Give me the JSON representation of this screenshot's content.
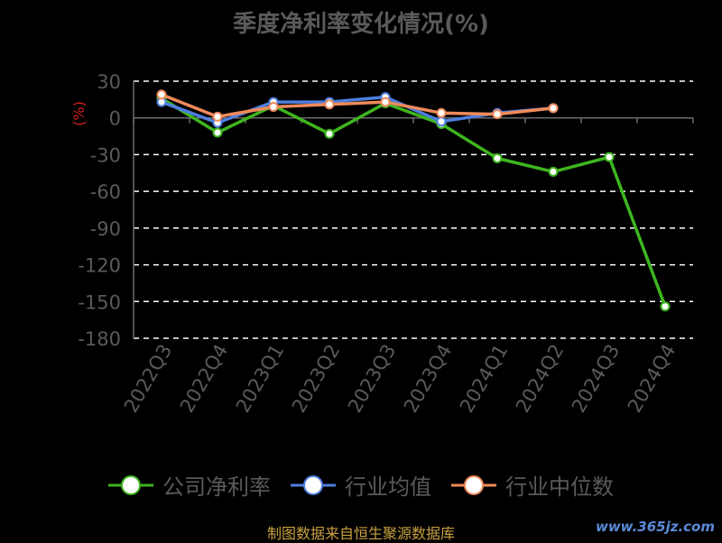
{
  "title": "季度净利率变化情况(%)",
  "source": "制图数据来自恒生聚源数据库",
  "watermark": "www.365jz.com",
  "chart_data": {
    "type": "line",
    "ylabel": "(%)",
    "ylim": [
      -180,
      30
    ],
    "yticks": [
      30,
      0,
      -30,
      -60,
      -90,
      -120,
      -150,
      -180
    ],
    "categories": [
      "2022Q3",
      "2022Q4",
      "2023Q1",
      "2023Q2",
      "2023Q3",
      "2023Q4",
      "2024Q1",
      "2024Q2",
      "2024Q3",
      "2024Q4"
    ],
    "grid": true,
    "legend_position": "bottom",
    "series": [
      {
        "name": "公司净利率",
        "color": "#3fb51f",
        "values": [
          16,
          -12,
          10,
          -13,
          12,
          -5,
          -33,
          -44,
          -32,
          -154
        ]
      },
      {
        "name": "行业均值",
        "color": "#4f7fe0",
        "values": [
          13,
          -4,
          13,
          13,
          17,
          -3,
          4,
          8,
          null,
          null
        ]
      },
      {
        "name": "行业中位数",
        "color": "#f08a5a",
        "values": [
          19,
          1,
          9,
          11,
          13,
          4,
          3,
          8,
          null,
          null
        ]
      }
    ]
  }
}
